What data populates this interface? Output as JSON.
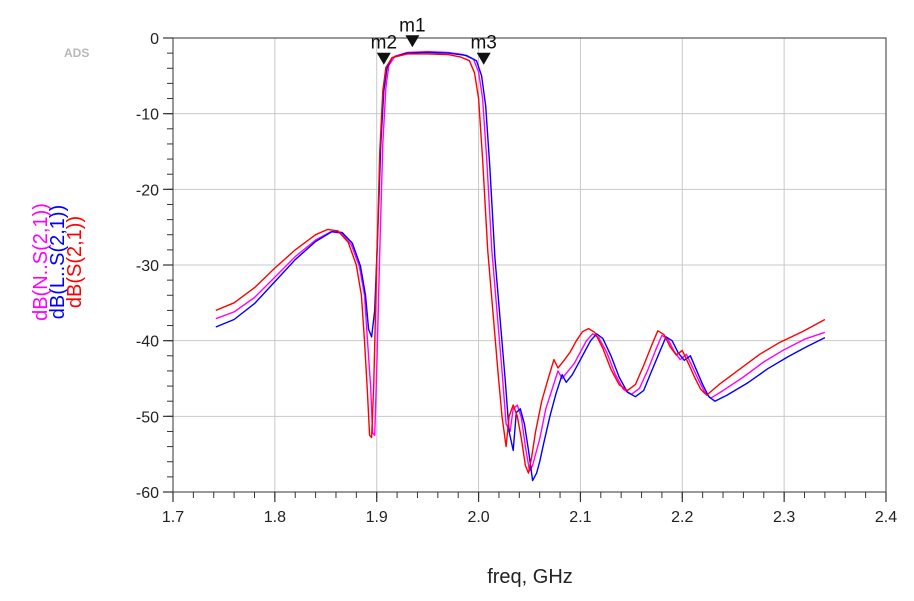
{
  "app_badge": "ADS",
  "chart_data": {
    "type": "line",
    "title": "",
    "xlabel": "freq, GHz",
    "ylabels": [
      {
        "text": "dB(N..S(2,1))",
        "color": "#ff00ff"
      },
      {
        "text": "dB(L..S(2,1))",
        "color": "#0000ff"
      },
      {
        "text": "dB(S(2,1))",
        "color": "#ff0000"
      }
    ],
    "xlim": [
      1.7,
      2.4
    ],
    "ylim": [
      -60,
      0
    ],
    "grid": true,
    "x_ticks": [
      "1.7",
      "1.8",
      "1.9",
      "2.0",
      "2.1",
      "2.2",
      "2.3",
      "2.4"
    ],
    "y_ticks": [
      "0",
      "-10",
      "-20",
      "-30",
      "-40",
      "-50",
      "-60"
    ],
    "series": [
      {
        "name": "dB(N..S(2,1))",
        "color": "#ff00ff",
        "points": [
          [
            1.742,
            -37.1
          ],
          [
            1.76,
            -36.2
          ],
          [
            1.78,
            -34.3
          ],
          [
            1.8,
            -31.6
          ],
          [
            1.82,
            -28.9
          ],
          [
            1.84,
            -26.7
          ],
          [
            1.855,
            -25.6
          ],
          [
            1.865,
            -25.8
          ],
          [
            1.875,
            -27.3
          ],
          [
            1.883,
            -30.2
          ],
          [
            1.888,
            -34.0
          ],
          [
            1.891,
            -40.0
          ],
          [
            1.894,
            -46.0
          ],
          [
            1.896,
            -52.2
          ],
          [
            1.898,
            -52.5
          ],
          [
            1.9,
            -44.0
          ],
          [
            1.903,
            -28.0
          ],
          [
            1.906,
            -14.0
          ],
          [
            1.909,
            -6.5
          ],
          [
            1.912,
            -3.6
          ],
          [
            1.918,
            -2.4
          ],
          [
            1.93,
            -1.9
          ],
          [
            1.95,
            -1.8
          ],
          [
            1.97,
            -1.9
          ],
          [
            1.985,
            -2.2
          ],
          [
            1.995,
            -2.8
          ],
          [
            2.0,
            -4.5
          ],
          [
            2.004,
            -8.0
          ],
          [
            2.008,
            -16.0
          ],
          [
            2.013,
            -28.0
          ],
          [
            2.018,
            -36.0
          ],
          [
            2.023,
            -44.0
          ],
          [
            2.027,
            -51.0
          ],
          [
            2.031,
            -52.0
          ],
          [
            2.034,
            -49.0
          ],
          [
            2.038,
            -48.5
          ],
          [
            2.042,
            -50.2
          ],
          [
            2.046,
            -54.0
          ],
          [
            2.05,
            -57.2
          ],
          [
            2.053,
            -56.5
          ],
          [
            2.056,
            -55.0
          ],
          [
            2.06,
            -53.0
          ],
          [
            2.066,
            -49.0
          ],
          [
            2.072,
            -46.5
          ],
          [
            2.078,
            -44.0
          ],
          [
            2.082,
            -45.0
          ],
          [
            2.088,
            -44.0
          ],
          [
            2.094,
            -43.0
          ],
          [
            2.1,
            -41.5
          ],
          [
            2.106,
            -40.0
          ],
          [
            2.112,
            -39.1
          ],
          [
            2.118,
            -39.6
          ],
          [
            2.126,
            -41.6
          ],
          [
            2.134,
            -44.4
          ],
          [
            2.142,
            -46.4
          ],
          [
            2.15,
            -47.1
          ],
          [
            2.158,
            -46.3
          ],
          [
            2.166,
            -43.9
          ],
          [
            2.174,
            -41.2
          ],
          [
            2.18,
            -39.3
          ],
          [
            2.186,
            -39.8
          ],
          [
            2.192,
            -41.4
          ],
          [
            2.198,
            -42.5
          ],
          [
            2.204,
            -41.8
          ],
          [
            2.21,
            -43.5
          ],
          [
            2.216,
            -45.2
          ],
          [
            2.222,
            -46.8
          ],
          [
            2.228,
            -47.6
          ],
          [
            2.24,
            -46.6
          ],
          [
            2.26,
            -44.8
          ],
          [
            2.28,
            -42.8
          ],
          [
            2.3,
            -41.2
          ],
          [
            2.32,
            -39.8
          ],
          [
            2.34,
            -38.9
          ]
        ]
      },
      {
        "name": "dB(L..S(2,1))",
        "color": "#0000ff",
        "points": [
          [
            1.742,
            -38.2
          ],
          [
            1.76,
            -37.2
          ],
          [
            1.78,
            -35.1
          ],
          [
            1.8,
            -32.2
          ],
          [
            1.82,
            -29.3
          ],
          [
            1.84,
            -26.9
          ],
          [
            1.856,
            -25.6
          ],
          [
            1.866,
            -25.7
          ],
          [
            1.876,
            -27.1
          ],
          [
            1.884,
            -30.1
          ],
          [
            1.889,
            -34.0
          ],
          [
            1.892,
            -38.5
          ],
          [
            1.895,
            -39.5
          ],
          [
            1.898,
            -36.0
          ],
          [
            1.901,
            -26.0
          ],
          [
            1.904,
            -14.0
          ],
          [
            1.907,
            -7.0
          ],
          [
            1.91,
            -4.0
          ],
          [
            1.915,
            -2.6
          ],
          [
            1.93,
            -2.0
          ],
          [
            1.95,
            -1.9
          ],
          [
            1.97,
            -2.0
          ],
          [
            1.988,
            -2.3
          ],
          [
            1.998,
            -3.0
          ],
          [
            2.003,
            -5.0
          ],
          [
            2.007,
            -9.0
          ],
          [
            2.011,
            -17.0
          ],
          [
            2.016,
            -29.0
          ],
          [
            2.021,
            -37.0
          ],
          [
            2.026,
            -45.0
          ],
          [
            2.03,
            -52.0
          ],
          [
            2.034,
            -54.5
          ],
          [
            2.037,
            -49.5
          ],
          [
            2.041,
            -49.0
          ],
          [
            2.045,
            -51.0
          ],
          [
            2.049,
            -54.5
          ],
          [
            2.053,
            -58.5
          ],
          [
            2.057,
            -57.5
          ],
          [
            2.06,
            -56.0
          ],
          [
            2.064,
            -53.5
          ],
          [
            2.07,
            -50.0
          ],
          [
            2.076,
            -47.0
          ],
          [
            2.082,
            -44.5
          ],
          [
            2.086,
            -45.5
          ],
          [
            2.092,
            -44.5
          ],
          [
            2.098,
            -43.0
          ],
          [
            2.104,
            -41.5
          ],
          [
            2.11,
            -40.0
          ],
          [
            2.116,
            -39.1
          ],
          [
            2.122,
            -39.7
          ],
          [
            2.13,
            -42.0
          ],
          [
            2.138,
            -44.8
          ],
          [
            2.146,
            -46.8
          ],
          [
            2.154,
            -47.4
          ],
          [
            2.162,
            -46.6
          ],
          [
            2.17,
            -44.0
          ],
          [
            2.178,
            -41.4
          ],
          [
            2.184,
            -39.5
          ],
          [
            2.19,
            -40.0
          ],
          [
            2.196,
            -41.6
          ],
          [
            2.202,
            -42.6
          ],
          [
            2.208,
            -42.0
          ],
          [
            2.214,
            -43.9
          ],
          [
            2.22,
            -45.8
          ],
          [
            2.226,
            -47.4
          ],
          [
            2.232,
            -48.0
          ],
          [
            2.244,
            -47.2
          ],
          [
            2.264,
            -45.6
          ],
          [
            2.284,
            -43.7
          ],
          [
            2.304,
            -42.1
          ],
          [
            2.322,
            -40.8
          ],
          [
            2.34,
            -39.6
          ]
        ]
      },
      {
        "name": "dB(S(2,1))",
        "color": "#ff0000",
        "points": [
          [
            1.742,
            -36.0
          ],
          [
            1.76,
            -35.0
          ],
          [
            1.78,
            -33.0
          ],
          [
            1.8,
            -30.4
          ],
          [
            1.82,
            -28.0
          ],
          [
            1.84,
            -26.0
          ],
          [
            1.852,
            -25.3
          ],
          [
            1.862,
            -25.5
          ],
          [
            1.872,
            -27.0
          ],
          [
            1.88,
            -30.0
          ],
          [
            1.885,
            -34.0
          ],
          [
            1.888,
            -40.0
          ],
          [
            1.891,
            -47.0
          ],
          [
            1.893,
            -52.5
          ],
          [
            1.895,
            -52.8
          ],
          [
            1.897,
            -46.0
          ],
          [
            1.9,
            -30.0
          ],
          [
            1.903,
            -15.0
          ],
          [
            1.906,
            -7.0
          ],
          [
            1.909,
            -3.9
          ],
          [
            1.915,
            -2.6
          ],
          [
            1.93,
            -2.1
          ],
          [
            1.95,
            -2.1
          ],
          [
            1.97,
            -2.2
          ],
          [
            1.982,
            -2.5
          ],
          [
            1.991,
            -3.0
          ],
          [
            1.996,
            -4.6
          ],
          [
            2.0,
            -8.0
          ],
          [
            2.004,
            -16.0
          ],
          [
            2.009,
            -28.0
          ],
          [
            2.014,
            -36.0
          ],
          [
            2.019,
            -44.0
          ],
          [
            2.023,
            -50.0
          ],
          [
            2.027,
            -54.0
          ],
          [
            2.03,
            -50.0
          ],
          [
            2.034,
            -48.5
          ],
          [
            2.038,
            -50.0
          ],
          [
            2.042,
            -53.0
          ],
          [
            2.046,
            -56.5
          ],
          [
            2.049,
            -57.5
          ],
          [
            2.052,
            -55.5
          ],
          [
            2.056,
            -52.0
          ],
          [
            2.062,
            -48.0
          ],
          [
            2.068,
            -45.2
          ],
          [
            2.074,
            -42.5
          ],
          [
            2.078,
            -43.6
          ],
          [
            2.084,
            -42.6
          ],
          [
            2.09,
            -41.5
          ],
          [
            2.096,
            -40.0
          ],
          [
            2.102,
            -38.8
          ],
          [
            2.108,
            -38.4
          ],
          [
            2.114,
            -38.9
          ],
          [
            2.122,
            -41.0
          ],
          [
            2.13,
            -43.8
          ],
          [
            2.138,
            -45.8
          ],
          [
            2.146,
            -46.6
          ],
          [
            2.154,
            -45.8
          ],
          [
            2.162,
            -43.3
          ],
          [
            2.17,
            -40.6
          ],
          [
            2.176,
            -38.7
          ],
          [
            2.182,
            -39.2
          ],
          [
            2.188,
            -40.8
          ],
          [
            2.194,
            -41.9
          ],
          [
            2.2,
            -41.3
          ],
          [
            2.206,
            -43.0
          ],
          [
            2.212,
            -44.8
          ],
          [
            2.218,
            -46.4
          ],
          [
            2.224,
            -47.2
          ],
          [
            2.236,
            -45.8
          ],
          [
            2.256,
            -43.8
          ],
          [
            2.276,
            -41.8
          ],
          [
            2.296,
            -40.2
          ],
          [
            2.318,
            -38.8
          ],
          [
            2.34,
            -37.2
          ]
        ]
      }
    ],
    "markers": [
      {
        "label": "m2",
        "x": 1.907,
        "y": -3.0
      },
      {
        "label": "m1",
        "x": 1.935,
        "y": -0.7
      },
      {
        "label": "m3",
        "x": 2.005,
        "y": -3.0
      }
    ]
  }
}
